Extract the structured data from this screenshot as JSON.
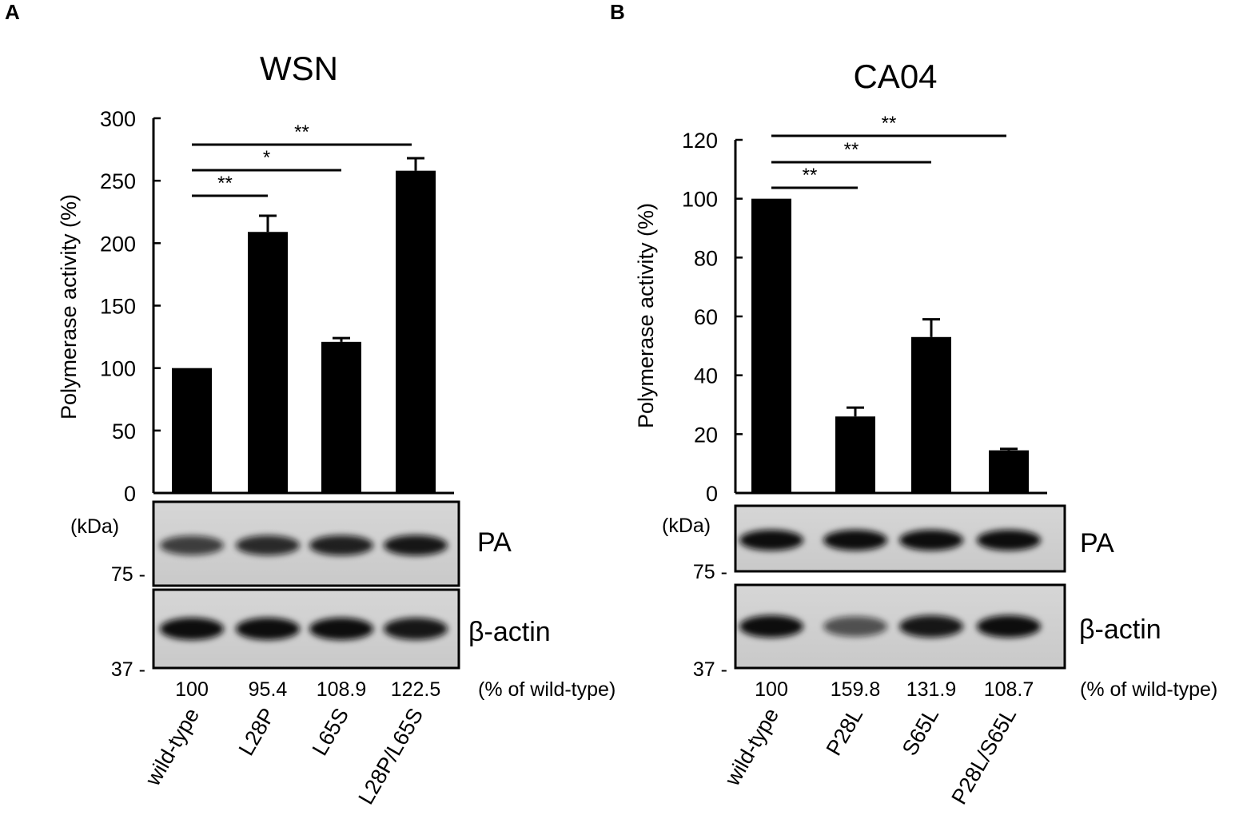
{
  "figure": {
    "blot_labels": {
      "pa": "PA",
      "actin": "β-actin",
      "unit": "(kDa)",
      "percent_label": "(% of wild-type)"
    }
  },
  "chart_data": [
    {
      "type": "bar",
      "panel": "A",
      "title": "WSN",
      "ylabel": "Polymerase activity (%)",
      "xlabel": "",
      "ylim": [
        0,
        300
      ],
      "yticks": [
        0,
        50,
        100,
        150,
        200,
        250,
        300
      ],
      "categories": [
        "wild-type",
        "L28P",
        "L65S",
        "L28P/L65S"
      ],
      "values": [
        100,
        209,
        121,
        258
      ],
      "errors": [
        0,
        13,
        3,
        10
      ],
      "bar_color": "#000000",
      "significance": [
        {
          "from": "wild-type",
          "to": "L28P",
          "label": "**"
        },
        {
          "from": "wild-type",
          "to": "L65S",
          "label": "*"
        },
        {
          "from": "wild-type",
          "to": "L28P/L65S",
          "label": "**"
        }
      ],
      "blot": {
        "markers": [
          "75 -",
          "37 -"
        ],
        "pa_intensity": [
          0.75,
          0.85,
          0.9,
          0.95
        ],
        "actin_intensity": [
          1,
          1,
          1,
          0.95
        ],
        "percent_of_wildtype": [
          "100",
          "95.4",
          "108.9",
          "122.5"
        ]
      }
    },
    {
      "type": "bar",
      "panel": "B",
      "title": "CA04",
      "ylabel": "Polymerase activity (%)",
      "xlabel": "",
      "ylim": [
        0,
        120
      ],
      "yticks": [
        0,
        20,
        40,
        60,
        80,
        100,
        120
      ],
      "categories": [
        "wild-type",
        "P28L",
        "S65L",
        "P28L/S65L"
      ],
      "values": [
        100,
        26,
        53,
        14.5
      ],
      "errors": [
        0,
        3,
        6,
        0.5
      ],
      "bar_color": "#000000",
      "significance": [
        {
          "from": "wild-type",
          "to": "P28L",
          "label": "**"
        },
        {
          "from": "wild-type",
          "to": "S65L",
          "label": "**"
        },
        {
          "from": "wild-type",
          "to": "P28L/S65L",
          "label": "**"
        }
      ],
      "blot": {
        "markers": [
          "75 -",
          "37 -"
        ],
        "pa_intensity": [
          1,
          1,
          1,
          1
        ],
        "actin_intensity": [
          1,
          0.65,
          0.95,
          1
        ],
        "percent_of_wildtype": [
          "100",
          "159.8",
          "131.9",
          "108.7"
        ]
      }
    }
  ]
}
